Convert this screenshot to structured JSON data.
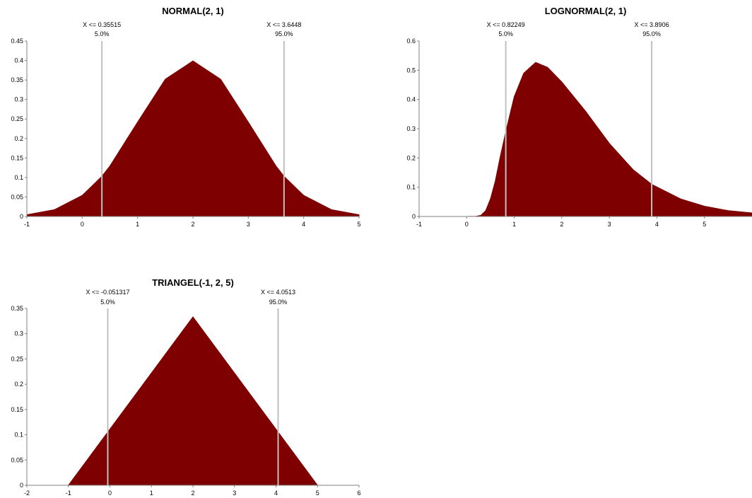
{
  "colors": {
    "fill": "#7f0000",
    "marker_line": "#c0c0c0",
    "axis": "#808080"
  },
  "chart_data": [
    {
      "type": "area",
      "title": "NORMAL(2, 1)",
      "xlabel": "",
      "ylabel": "",
      "xlim": [
        -1,
        5
      ],
      "ylim": [
        0,
        0.45
      ],
      "x_ticks": [
        -1,
        0,
        1,
        2,
        3,
        4,
        5
      ],
      "x_tick_labels": [
        "-1",
        "0",
        "1",
        "2",
        "3",
        "4",
        "5"
      ],
      "y_ticks": [
        0,
        0.05,
        0.1,
        0.15,
        0.2,
        0.25,
        0.3,
        0.35,
        0.4,
        0.45
      ],
      "y_tick_labels": [
        "0",
        "0.05",
        "0.1",
        "0.15",
        "0.2",
        "0.25",
        "0.3",
        "0.35",
        "0.4",
        "0.45"
      ],
      "x": [
        -1,
        -0.5,
        0,
        0.35515,
        0.5,
        1,
        1.5,
        2,
        2.5,
        3,
        3.5,
        3.6448,
        4,
        4.5,
        5
      ],
      "y": [
        0.0044,
        0.0175,
        0.054,
        0.103,
        0.1295,
        0.242,
        0.352,
        0.399,
        0.352,
        0.242,
        0.1295,
        0.103,
        0.054,
        0.0175,
        0.0044
      ],
      "markers": [
        {
          "x": 0.35515,
          "label": "X <= 0.35515",
          "pct": "5.0%"
        },
        {
          "x": 3.6448,
          "label": "X <= 3.6448",
          "pct": "95.0%"
        }
      ]
    },
    {
      "type": "area",
      "title": "LOGNORMAL(2, 1)",
      "xlabel": "",
      "ylabel": "",
      "xlim": [
        -1,
        6
      ],
      "ylim": [
        0,
        0.6
      ],
      "x_ticks": [
        -1,
        0,
        1,
        2,
        3,
        4,
        5
      ],
      "x_tick_labels": [
        "-1",
        "0",
        "1",
        "2",
        "3",
        "4",
        "5"
      ],
      "y_ticks": [
        0,
        0.1,
        0.2,
        0.3,
        0.4,
        0.5,
        0.6
      ],
      "y_tick_labels": [
        "0",
        "0.1",
        "0.2",
        "0.3",
        "0.4",
        "0.5",
        "0.6"
      ],
      "x": [
        -1,
        0,
        0.2,
        0.3,
        0.4,
        0.5,
        0.6,
        0.7,
        0.82249,
        1,
        1.2,
        1.45,
        1.7,
        2,
        2.5,
        3,
        3.5,
        3.8906,
        4.5,
        5,
        5.5,
        6
      ],
      "y": [
        0,
        0,
        0.0005,
        0.004,
        0.02,
        0.06,
        0.12,
        0.2,
        0.29,
        0.41,
        0.49,
        0.527,
        0.51,
        0.46,
        0.36,
        0.25,
        0.16,
        0.11,
        0.06,
        0.035,
        0.02,
        0.012
      ],
      "markers": [
        {
          "x": 0.82249,
          "label": "X <= 0.82249",
          "pct": "5.0%"
        },
        {
          "x": 3.8906,
          "label": "X <= 3.8906",
          "pct": "95.0%"
        }
      ]
    },
    {
      "type": "area",
      "title": "TRIANGEL(-1, 2, 5)",
      "xlabel": "",
      "ylabel": "",
      "xlim": [
        -2,
        6
      ],
      "ylim": [
        0,
        0.35
      ],
      "x_ticks": [
        -2,
        -1,
        0,
        1,
        2,
        3,
        4,
        5,
        6
      ],
      "x_tick_labels": [
        "-2",
        "-1",
        "0",
        "1",
        "2",
        "3",
        "4",
        "5",
        "6"
      ],
      "y_ticks": [
        0,
        0.05,
        0.1,
        0.15,
        0.2,
        0.25,
        0.3,
        0.35
      ],
      "y_tick_labels": [
        "0",
        "0.05",
        "0.1",
        "0.15",
        "0.2",
        "0.25",
        "0.3",
        "0.35"
      ],
      "x": [
        -2,
        -1,
        2,
        5,
        6
      ],
      "y": [
        0,
        0,
        0.3333,
        0,
        0
      ],
      "markers": [
        {
          "x": -0.051317,
          "label": "X <= -0.051317",
          "pct": "5.0%"
        },
        {
          "x": 4.0513,
          "label": "X <= 4.0513",
          "pct": "95.0%"
        }
      ]
    }
  ]
}
